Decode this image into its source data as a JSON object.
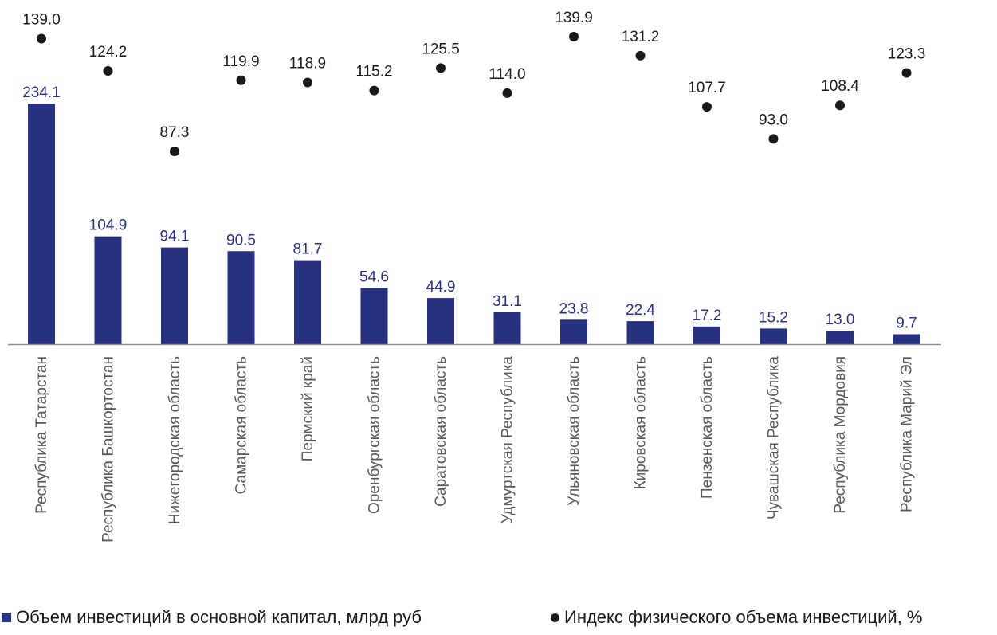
{
  "chart_data": {
    "type": "bar",
    "categories": [
      "Республика Татарстан",
      "Республика Башкортостан",
      "Нижегородская область",
      "Самарская область",
      "Пермский край",
      "Оренбургская область",
      "Саратовская область",
      "Удмуртская Республика",
      "Ульяновская область",
      "Кировская область",
      "Пензенская область",
      "Чувашская Республика",
      "Республика Мордовия",
      "Республика Марий Эл"
    ],
    "series": [
      {
        "name": "Объем инвестиций в основной капитал, млрд руб",
        "type": "bar",
        "color": "#27317F",
        "values": [
          234.1,
          104.9,
          94.1,
          90.5,
          81.7,
          54.6,
          44.9,
          31.1,
          23.8,
          22.4,
          17.2,
          15.2,
          13.0,
          9.7
        ],
        "labels": [
          "234.1",
          "104.9",
          "94.1",
          "90.5",
          "81.7",
          "54.6",
          "44.9",
          "31.1",
          "23.8",
          "22.4",
          "17.2",
          "15.2",
          "13.0",
          "9.7"
        ]
      },
      {
        "name": "Индекс физического объема инвестиций, %",
        "type": "scatter",
        "color": "#1a1a1a",
        "values": [
          139.0,
          124.2,
          87.3,
          119.9,
          118.9,
          115.2,
          125.5,
          114.0,
          139.9,
          131.2,
          107.7,
          93.0,
          108.4,
          123.3
        ],
        "labels": [
          "139.0",
          "124.2",
          "87.3",
          "119.9",
          "118.9",
          "115.2",
          "125.5",
          "114.0",
          "139.9",
          "131.2",
          "107.7",
          "93.0",
          "108.4",
          "123.3"
        ]
      }
    ],
    "bar_axis_range": [
      0,
      234.1
    ],
    "index_axis_range": [
      85,
      141
    ],
    "legend_position": "bottom",
    "grid": false,
    "label_color": "#27317F",
    "axis_color": "#8c8c8c",
    "category_label_color": "#595959"
  }
}
